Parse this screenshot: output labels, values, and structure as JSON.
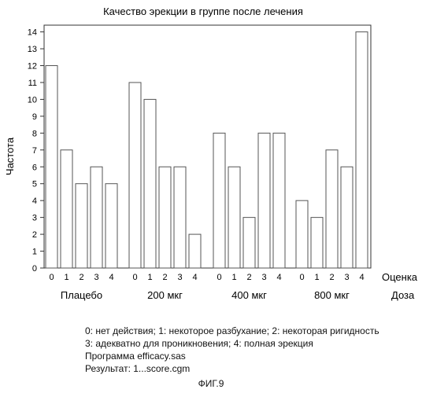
{
  "chart_data": {
    "type": "bar",
    "title": "Качество эрекции в группе после лечения",
    "ylabel": "Частота",
    "xlabel": "Оценка",
    "group_axis_label": "Доза",
    "ylim": [
      0,
      14.4
    ],
    "yticks": [
      0,
      1,
      2,
      3,
      4,
      5,
      6,
      7,
      8,
      9,
      10,
      11,
      12,
      13,
      14
    ],
    "grid": false,
    "groups": [
      {
        "name": "Плацебо",
        "categories": [
          "0",
          "1",
          "2",
          "3",
          "4"
        ],
        "values": [
          12,
          7,
          5,
          6,
          5
        ]
      },
      {
        "name": "200 мкг",
        "categories": [
          "0",
          "1",
          "2",
          "3",
          "4"
        ],
        "values": [
          11,
          10,
          6,
          6,
          2
        ]
      },
      {
        "name": "400 мкг",
        "categories": [
          "0",
          "1",
          "2",
          "3",
          "4"
        ],
        "values": [
          8,
          6,
          3,
          8,
          8
        ]
      },
      {
        "name": "800 мкг",
        "categories": [
          "0",
          "1",
          "2",
          "3",
          "4"
        ],
        "values": [
          4,
          3,
          7,
          6,
          14
        ]
      }
    ]
  },
  "legend_lines": [
    "0: нет действия; 1: некоторое разбухание; 2: некоторая ригидность",
    "3: адекватно для проникновения; 4: полная эрекция",
    "Программа efficacy.sas",
    "Результат: 1...score.cgm"
  ],
  "figure_label": "ФИГ.9"
}
